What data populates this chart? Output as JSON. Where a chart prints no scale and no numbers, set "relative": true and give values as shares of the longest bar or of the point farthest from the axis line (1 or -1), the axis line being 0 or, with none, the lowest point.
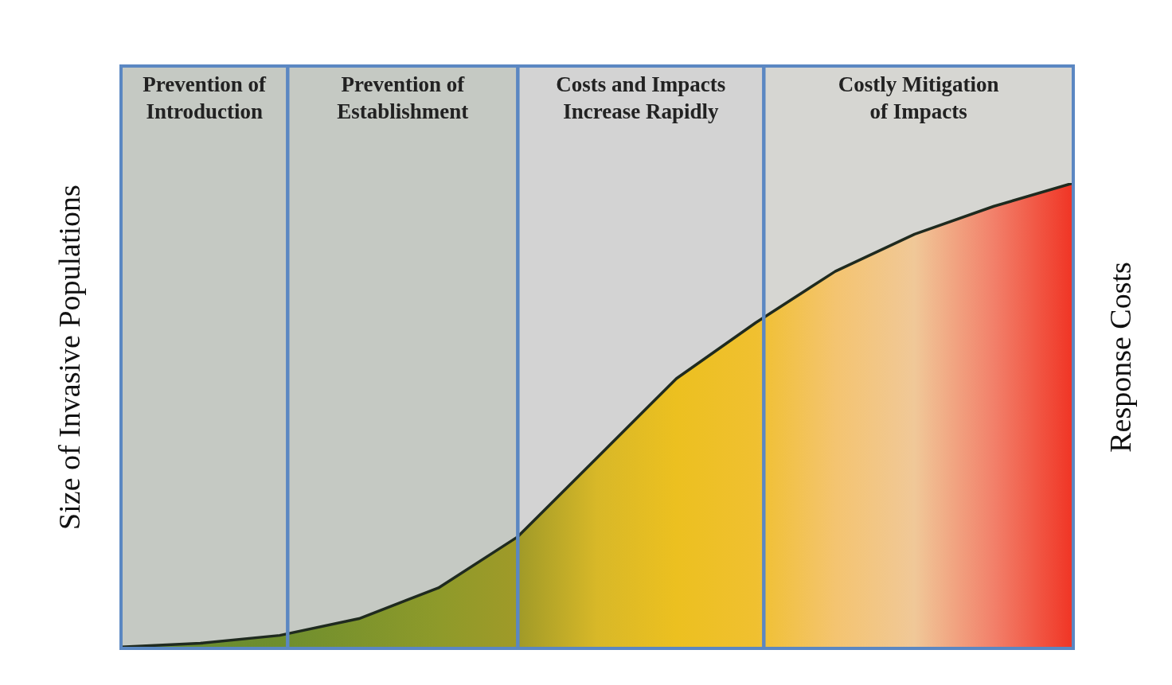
{
  "chart_data": {
    "type": "area",
    "relative": true,
    "ylabel": "Size of Invasive Populations",
    "y2label": "Response Costs",
    "categories": [
      null,
      null,
      null,
      null,
      null,
      null,
      null,
      null,
      null,
      null,
      null,
      null,
      null
    ],
    "series": [
      {
        "color": "#1f2a1f",
        "values": [
          0.003,
          0.011,
          0.028,
          0.064,
          0.13,
          0.24,
          0.41,
          0.58,
          0.7,
          0.81,
          0.89,
          0.95,
          1.0
        ],
        "colors": [
          "#6a8c30",
          "#6a8c30",
          "#6e8e2e",
          "#7e942c",
          "#8e9a2a",
          "#a09a28",
          "#d8b828",
          "#ecc020",
          "#f0c030",
          "#f4c470",
          "#f0c898",
          "#f2806a",
          "#f03424"
        ]
      }
    ],
    "annotations": [
      "Prevention of Introduction",
      "Prevention of Establishment",
      "Costs and Impacts Increase Rapidly",
      "Costly Mitigation of Impacts"
    ],
    "legend": false,
    "marker": "none"
  }
}
